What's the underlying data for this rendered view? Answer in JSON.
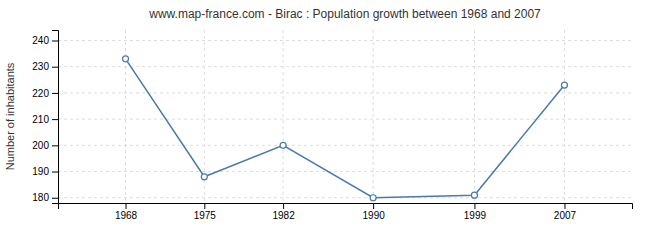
{
  "chart_data": {
    "type": "line",
    "title": "www.map-france.com - Birac : Population growth between 1968 and 2007",
    "ylabel": "Number of inhabitants",
    "x": [
      1968,
      1975,
      1982,
      1990,
      1999,
      2007
    ],
    "values": [
      233,
      188,
      200,
      180,
      181,
      223
    ],
    "color": "#4a7aaa",
    "marker": "circle",
    "xlim": [
      1962,
      2013
    ],
    "xticks": [
      1968,
      1975,
      1982,
      1990,
      1999,
      2007
    ],
    "ylim": [
      178,
      244
    ],
    "yticks": [
      180,
      190,
      200,
      210,
      220,
      230,
      240
    ],
    "grid": true
  }
}
